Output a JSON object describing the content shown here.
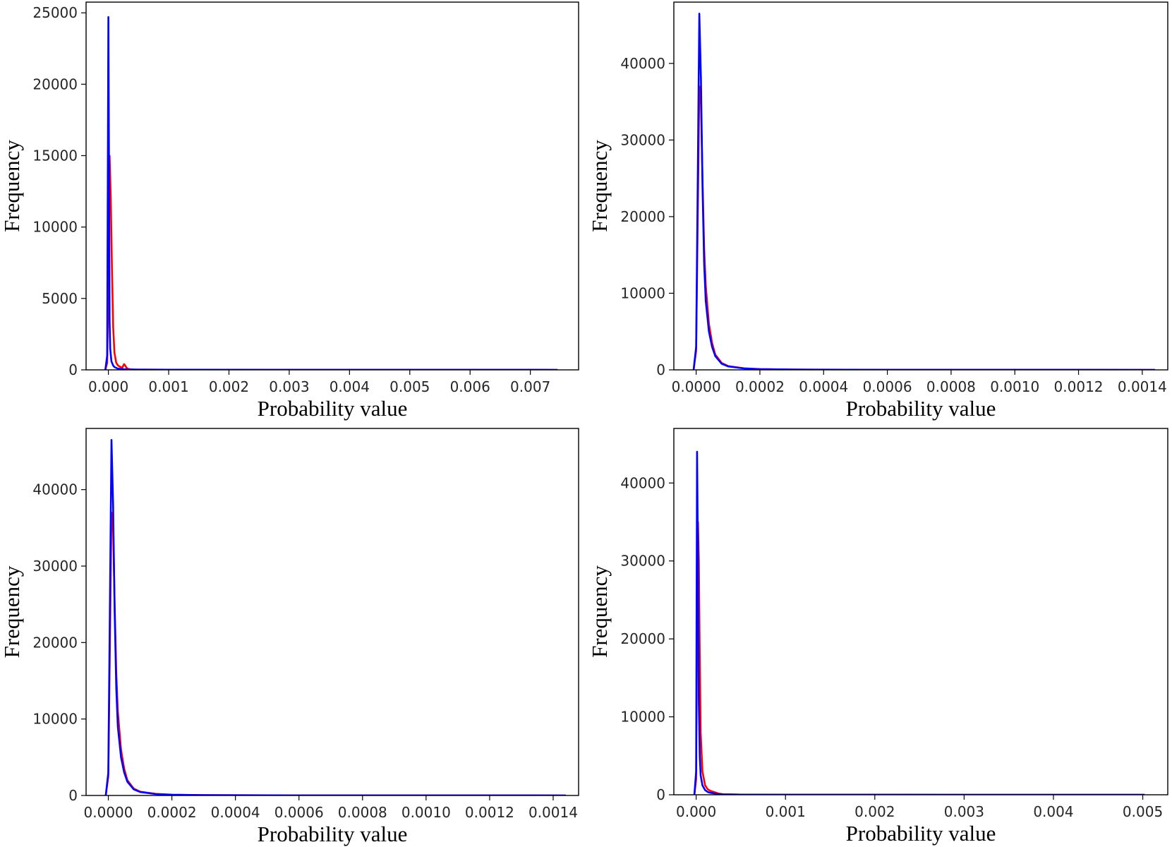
{
  "colors": {
    "red_series": "#ff0000",
    "blue_series": "#0000ff",
    "frame": "#000000",
    "background": "#ffffff"
  },
  "chart_data": [
    {
      "type": "line",
      "xlabel": "Probability value",
      "ylabel": "Frequency",
      "xlim": [
        -0.00037,
        0.0078
      ],
      "ylim": [
        0,
        25750
      ],
      "x_ticks": [
        "0.000",
        "0.001",
        "0.002",
        "0.003",
        "0.004",
        "0.005",
        "0.006",
        "0.007"
      ],
      "y_ticks": [
        "0",
        "5000",
        "10000",
        "15000",
        "20000",
        "25000"
      ],
      "grid": false,
      "series": [
        {
          "color": "#ff0000",
          "x": [
            -5e-05,
            -2e-05,
            0.0,
            1e-05,
            2e-05,
            4e-05,
            6e-05,
            8e-05,
            0.0001,
            0.00013,
            0.00016,
            0.0002,
            0.00023,
            0.00026,
            0.00028,
            0.0003,
            0.00033,
            0.0004,
            0.001,
            0.003,
            0.005,
            0.00745
          ],
          "y": [
            0,
            500,
            6000,
            12500,
            15000,
            12000,
            7000,
            3000,
            1200,
            500,
            300,
            200,
            150,
            400,
            300,
            150,
            60,
            20,
            10,
            5,
            3,
            0
          ]
        },
        {
          "color": "#0000ff",
          "x": [
            -5e-05,
            -2e-05,
            0.0,
            1e-05,
            2e-05,
            3e-05,
            5e-05,
            8e-05,
            0.0001,
            0.00015,
            0.0002,
            0.0003,
            0.0005,
            0.001,
            0.003,
            0.005,
            0.00745
          ],
          "y": [
            0,
            1000,
            24700,
            14000,
            3500,
            1500,
            600,
            300,
            200,
            100,
            60,
            30,
            15,
            10,
            5,
            3,
            0
          ]
        }
      ]
    },
    {
      "type": "line",
      "xlabel": "Probability value",
      "ylabel": "Frequency",
      "xlim": [
        -7e-05,
        0.00148
      ],
      "ylim": [
        0,
        48000
      ],
      "x_ticks": [
        "0.0000",
        "0.0002",
        "0.0004",
        "0.0006",
        "0.0008",
        "0.0010",
        "0.0012",
        "0.0014"
      ],
      "y_ticks": [
        "0",
        "10000",
        "20000",
        "30000",
        "40000"
      ],
      "grid": false,
      "series": [
        {
          "color": "#ff0000",
          "x": [
            -8e-06,
            0.0,
            5e-06,
            1e-05,
            1.5e-05,
            2e-05,
            2.5e-05,
            3e-05,
            4e-05,
            5e-05,
            6e-05,
            8e-05,
            0.0001,
            0.00015,
            0.0002,
            0.0003,
            0.0006,
            0.001,
            0.00144
          ],
          "y": [
            0,
            2500,
            20000,
            37000,
            35000,
            25000,
            16000,
            11000,
            6000,
            3500,
            2000,
            900,
            500,
            200,
            100,
            40,
            10,
            5,
            0
          ]
        },
        {
          "color": "#0000ff",
          "x": [
            -8e-06,
            0.0,
            5e-06,
            1e-05,
            1.5e-05,
            2e-05,
            2.5e-05,
            3e-05,
            4e-05,
            5e-05,
            6e-05,
            8e-05,
            0.0001,
            0.00015,
            0.0002,
            0.0003,
            0.0006,
            0.001,
            0.00144
          ],
          "y": [
            0,
            3000,
            25000,
            46500,
            38000,
            24000,
            14000,
            9000,
            5000,
            3000,
            1800,
            800,
            450,
            180,
            90,
            40,
            10,
            5,
            0
          ]
        }
      ]
    },
    {
      "type": "line",
      "xlabel": "Probability value",
      "ylabel": "Frequency",
      "xlim": [
        -7e-05,
        0.00148
      ],
      "ylim": [
        0,
        48000
      ],
      "x_ticks": [
        "0.0000",
        "0.0002",
        "0.0004",
        "0.0006",
        "0.0008",
        "0.0010",
        "0.0012",
        "0.0014"
      ],
      "y_ticks": [
        "0",
        "10000",
        "20000",
        "30000",
        "40000"
      ],
      "grid": false,
      "series": [
        {
          "color": "#ff0000",
          "x": [
            -8e-06,
            0.0,
            5e-06,
            1e-05,
            1.5e-05,
            2e-05,
            2.5e-05,
            3e-05,
            4e-05,
            5e-05,
            6e-05,
            8e-05,
            0.0001,
            0.00015,
            0.0002,
            0.0003,
            0.0006,
            0.001,
            0.00144
          ],
          "y": [
            0,
            2500,
            20000,
            37000,
            35000,
            25000,
            16000,
            11000,
            6000,
            3500,
            2000,
            900,
            500,
            200,
            100,
            40,
            10,
            5,
            0
          ]
        },
        {
          "color": "#0000ff",
          "x": [
            -8e-06,
            0.0,
            5e-06,
            1e-05,
            1.5e-05,
            2e-05,
            2.5e-05,
            3e-05,
            4e-05,
            5e-05,
            6e-05,
            8e-05,
            0.0001,
            0.00015,
            0.0002,
            0.0003,
            0.0006,
            0.001,
            0.00144
          ],
          "y": [
            0,
            3000,
            25000,
            46500,
            38000,
            24000,
            14000,
            9000,
            5000,
            3000,
            1800,
            800,
            450,
            180,
            90,
            40,
            10,
            5,
            0
          ]
        }
      ]
    },
    {
      "type": "line",
      "xlabel": "Probability value",
      "ylabel": "Frequency",
      "xlim": [
        -0.00025,
        0.00528
      ],
      "ylim": [
        0,
        47000
      ],
      "x_ticks": [
        "0.000",
        "0.001",
        "0.002",
        "0.003",
        "0.004",
        "0.005"
      ],
      "y_ticks": [
        "0",
        "10000",
        "20000",
        "30000",
        "40000"
      ],
      "grid": false,
      "series": [
        {
          "color": "#ff0000",
          "x": [
            -2e-05,
            0.0,
            1e-05,
            2e-05,
            3e-05,
            4e-05,
            5e-05,
            7e-05,
            0.0001,
            0.00013,
            0.00016,
            0.0002,
            0.00025,
            0.0003,
            0.0005,
            0.001,
            0.003,
            0.00502
          ],
          "y": [
            0,
            2000,
            20000,
            35000,
            30000,
            18000,
            8000,
            3000,
            1200,
            700,
            500,
            350,
            150,
            60,
            20,
            8,
            3,
            0
          ]
        },
        {
          "color": "#0000ff",
          "x": [
            -2e-05,
            0.0,
            1e-05,
            2e-05,
            3e-05,
            4e-05,
            5e-05,
            7e-05,
            0.0001,
            0.00013,
            0.00016,
            0.0002,
            0.00025,
            0.0003,
            0.0005,
            0.001,
            0.003,
            0.00502
          ],
          "y": [
            0,
            3000,
            44000,
            30000,
            12000,
            5000,
            2500,
            1200,
            600,
            350,
            250,
            180,
            100,
            50,
            20,
            8,
            3,
            0
          ]
        }
      ]
    }
  ]
}
